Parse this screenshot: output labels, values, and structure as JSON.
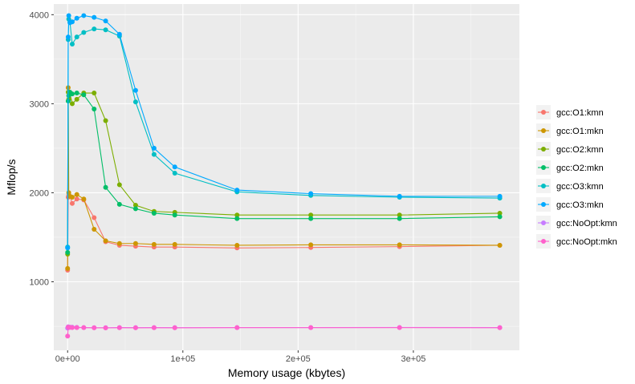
{
  "chart_data": {
    "type": "line",
    "title": "",
    "xlabel": "Memory usage (kbytes)",
    "ylabel": "Mflop/s",
    "xlim": [
      -12000,
      392000
    ],
    "ylim": [
      230,
      4120
    ],
    "x_ticks": [
      0,
      100000,
      200000,
      300000
    ],
    "x_tick_labels": [
      "0e+00",
      "1e+05",
      "2e+05",
      "3e+05"
    ],
    "y_ticks": [
      1000,
      2000,
      3000,
      4000
    ],
    "y_tick_labels": [
      "1000",
      "2000",
      "3000",
      "4000"
    ],
    "grid": true,
    "legend_position": "right",
    "series": [
      {
        "name": "gcc:O1:kmn",
        "color": "#F8766D",
        "points": [
          [
            0,
            1130
          ],
          [
            500,
            1950
          ],
          [
            1000,
            1970
          ],
          [
            2000,
            1960
          ],
          [
            4000,
            1880
          ],
          [
            8000,
            1930
          ],
          [
            14000,
            1920
          ],
          [
            23000,
            1720
          ],
          [
            33000,
            1450
          ],
          [
            45000,
            1410
          ],
          [
            59000,
            1400
          ],
          [
            75000,
            1390
          ],
          [
            93000,
            1390
          ],
          [
            147000,
            1380
          ],
          [
            211000,
            1385
          ],
          [
            288000,
            1395
          ],
          [
            375000,
            1410
          ]
        ]
      },
      {
        "name": "gcc:O1:mkn",
        "color": "#CD9600",
        "points": [
          [
            0,
            1150
          ],
          [
            500,
            3180
          ],
          [
            1000,
            2000
          ],
          [
            2000,
            1960
          ],
          [
            4000,
            1950
          ],
          [
            8000,
            1980
          ],
          [
            14000,
            1930
          ],
          [
            23000,
            1590
          ],
          [
            33000,
            1460
          ],
          [
            45000,
            1430
          ],
          [
            59000,
            1430
          ],
          [
            75000,
            1420
          ],
          [
            93000,
            1420
          ],
          [
            147000,
            1410
          ],
          [
            211000,
            1415
          ],
          [
            288000,
            1415
          ],
          [
            375000,
            1410
          ]
        ]
      },
      {
        "name": "gcc:O2:kmn",
        "color": "#7CAE00",
        "points": [
          [
            0,
            1310
          ],
          [
            500,
            3130
          ],
          [
            1000,
            3050
          ],
          [
            2000,
            3120
          ],
          [
            4000,
            3000
          ],
          [
            8000,
            3050
          ],
          [
            14000,
            3120
          ],
          [
            23000,
            3120
          ],
          [
            33000,
            2810
          ],
          [
            45000,
            2090
          ],
          [
            59000,
            1860
          ],
          [
            75000,
            1790
          ],
          [
            93000,
            1780
          ],
          [
            147000,
            1750
          ],
          [
            211000,
            1750
          ],
          [
            288000,
            1750
          ],
          [
            375000,
            1770
          ]
        ]
      },
      {
        "name": "gcc:O2:mkn",
        "color": "#00BE67",
        "points": [
          [
            0,
            1330
          ],
          [
            500,
            3030
          ],
          [
            1000,
            3090
          ],
          [
            2000,
            3130
          ],
          [
            4000,
            3110
          ],
          [
            8000,
            3120
          ],
          [
            14000,
            3100
          ],
          [
            23000,
            2940
          ],
          [
            33000,
            2060
          ],
          [
            45000,
            1870
          ],
          [
            59000,
            1820
          ],
          [
            75000,
            1770
          ],
          [
            93000,
            1750
          ],
          [
            147000,
            1710
          ],
          [
            211000,
            1710
          ],
          [
            288000,
            1710
          ],
          [
            375000,
            1730
          ]
        ]
      },
      {
        "name": "gcc:O3:kmn",
        "color": "#00BFC4",
        "points": [
          [
            0,
            1390
          ],
          [
            500,
            3720
          ],
          [
            1000,
            3950
          ],
          [
            2000,
            3920
          ],
          [
            4000,
            3670
          ],
          [
            8000,
            3750
          ],
          [
            14000,
            3800
          ],
          [
            23000,
            3840
          ],
          [
            33000,
            3830
          ],
          [
            45000,
            3760
          ],
          [
            59000,
            3020
          ],
          [
            75000,
            2430
          ],
          [
            93000,
            2220
          ],
          [
            147000,
            2010
          ],
          [
            211000,
            1970
          ],
          [
            288000,
            1950
          ],
          [
            375000,
            1940
          ]
        ]
      },
      {
        "name": "gcc:O3:mkn",
        "color": "#00A9FF",
        "points": [
          [
            0,
            1380
          ],
          [
            500,
            3750
          ],
          [
            1000,
            3990
          ],
          [
            2000,
            3910
          ],
          [
            4000,
            3920
          ],
          [
            8000,
            3960
          ],
          [
            14000,
            3990
          ],
          [
            23000,
            3970
          ],
          [
            33000,
            3930
          ],
          [
            45000,
            3780
          ],
          [
            59000,
            3150
          ],
          [
            75000,
            2500
          ],
          [
            93000,
            2290
          ],
          [
            147000,
            2030
          ],
          [
            211000,
            1990
          ],
          [
            288000,
            1960
          ],
          [
            375000,
            1960
          ]
        ]
      },
      {
        "name": "gcc:NoOpt:kmn",
        "color": "#C77CFF",
        "points": [
          [
            0,
            480
          ],
          [
            500,
            495
          ],
          [
            2000,
            490
          ],
          [
            4000,
            490
          ],
          [
            8000,
            488
          ],
          [
            14000,
            486
          ],
          [
            23000,
            484
          ],
          [
            33000,
            484
          ],
          [
            45000,
            486
          ],
          [
            59000,
            485
          ],
          [
            75000,
            486
          ],
          [
            93000,
            485
          ],
          [
            147000,
            486
          ],
          [
            211000,
            486
          ],
          [
            288000,
            487
          ],
          [
            375000,
            486
          ]
        ]
      },
      {
        "name": "gcc:NoOpt:mkn",
        "color": "#FF61CC",
        "points": [
          [
            0,
            390
          ],
          [
            500,
            490
          ],
          [
            2000,
            488
          ],
          [
            4000,
            486
          ],
          [
            8000,
            486
          ],
          [
            14000,
            485
          ],
          [
            23000,
            483
          ],
          [
            33000,
            482
          ],
          [
            45000,
            484
          ],
          [
            59000,
            483
          ],
          [
            75000,
            484
          ],
          [
            93000,
            483
          ],
          [
            147000,
            485
          ],
          [
            211000,
            485
          ],
          [
            288000,
            485
          ],
          [
            375000,
            484
          ]
        ]
      }
    ]
  }
}
